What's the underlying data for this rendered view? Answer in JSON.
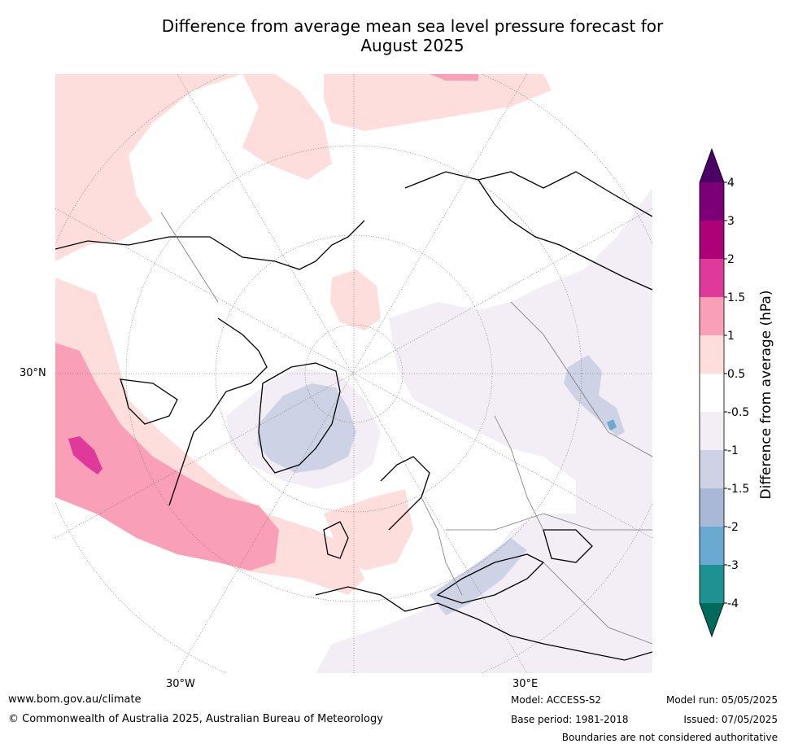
{
  "title_line1": "Difference from average mean sea level pressure forecast for",
  "title_line2": "August 2025",
  "map": {
    "label_30n": "30°N",
    "label_30w": "30°W",
    "label_30e": "30°E"
  },
  "colorbar": {
    "label": "Difference from average (hPa)",
    "ticks": [
      "-4",
      "-3",
      "-2",
      "-1.5",
      "-1",
      "-0.5",
      "0.5",
      "1",
      "1.5",
      "2",
      "3",
      "4"
    ],
    "colors": {
      "below_-4": "#006b5a",
      "-4_-3": "#1e9193",
      "-3_-2": "#6aaad0",
      "-2_-1.5": "#a8b8d6",
      "-1.5_-1": "#ced2e5",
      "-1_-0.5": "#f3eef5",
      "-0.5_0.5": "#ffffff",
      "0.5_1": "#fddedd",
      "1_1.5": "#f99fb8",
      "1.5_2": "#df3a9b",
      "2_3": "#ad0178",
      "3_4": "#7b0077",
      "above_4": "#4b0066"
    }
  },
  "footer": {
    "url": "www.bom.gov.au/climate",
    "copyright": "© Commonwealth of Australia 2025, Australian Bureau of Meteorology",
    "model": "Model: ACCESS-S2",
    "base_period": "Base period: 1981-2018",
    "model_run": "Model run: 05/05/2025",
    "issued": "Issued: 07/05/2025",
    "disclaimer": "Boundaries are not considered authoritative"
  }
}
